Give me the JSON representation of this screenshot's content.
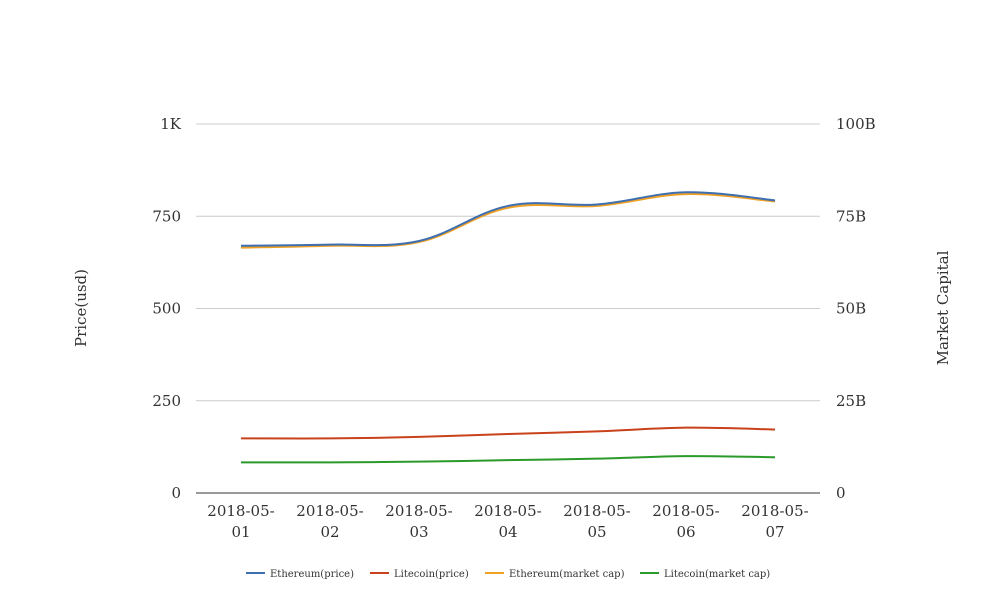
{
  "chart_data": {
    "type": "line",
    "categories": [
      [
        "2018-05-",
        "01"
      ],
      [
        "2018-05-",
        "02"
      ],
      [
        "2018-05-",
        "03"
      ],
      [
        "2018-05-",
        "04"
      ],
      [
        "2018-05-",
        "05"
      ],
      [
        "2018-05-",
        "06"
      ],
      [
        "2018-05-",
        "07"
      ]
    ],
    "y_left": {
      "label": "Price(usd)",
      "range": [
        0,
        1000
      ],
      "ticks": [
        0,
        250,
        500,
        750,
        1000
      ],
      "tick_labels": [
        "0",
        "250",
        "500",
        "750",
        "1K"
      ]
    },
    "y_right": {
      "label": "Market Capital",
      "range": [
        0,
        100000000000
      ],
      "ticks": [
        0,
        25000000000,
        50000000000,
        75000000000,
        100000000000
      ],
      "tick_labels": [
        "0",
        "25B",
        "50B",
        "75B",
        "100B"
      ]
    },
    "grid": true,
    "legend_position": "bottom",
    "series": [
      {
        "name": "Ethereum(price)",
        "axis": "left",
        "color": "#3e6fb0",
        "values": [
          670,
          673,
          683,
          778,
          782,
          815,
          793
        ]
      },
      {
        "name": "Litecoin(price)",
        "axis": "left",
        "color": "#c9421b",
        "values": [
          148,
          148,
          152,
          160,
          167,
          177,
          172
        ]
      },
      {
        "name": "Ethereum(market cap)",
        "axis": "right",
        "color": "#f0a023",
        "values": [
          66500000000,
          67000000000,
          68000000000,
          77300000000,
          77800000000,
          81000000000,
          79000000000
        ]
      },
      {
        "name": "Litecoin(market cap)",
        "axis": "right",
        "color": "#2a9a2a",
        "values": [
          8300000000,
          8300000000,
          8500000000,
          8900000000,
          9300000000,
          10000000000,
          9700000000
        ]
      }
    ]
  }
}
